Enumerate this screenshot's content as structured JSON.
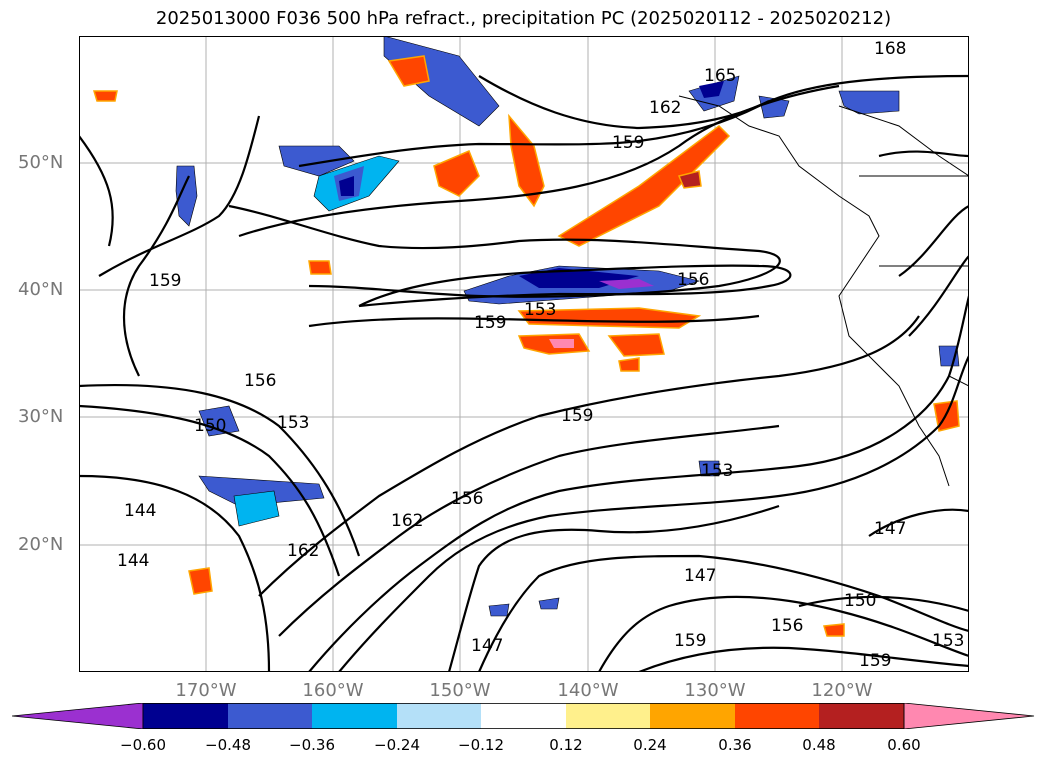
{
  "title": "2025013000 F036 500 hPa refract., precipitation PC (2025020112 - 2025020212)",
  "map": {
    "lat_labels": [
      "50°N",
      "40°N",
      "30°N",
      "20°N"
    ],
    "lon_labels": [
      "170°W",
      "160°W",
      "150°W",
      "140°W",
      "130°W",
      "120°W"
    ],
    "contour_labels": [
      "168",
      "165",
      "162",
      "159",
      "159",
      "156",
      "153",
      "159",
      "156",
      "153",
      "150",
      "144",
      "144",
      "162",
      "159",
      "156",
      "162",
      "153",
      "147",
      "147",
      "159",
      "156",
      "150",
      "147",
      "153",
      "159"
    ]
  },
  "colorbar": {
    "ticks": [
      "−0.60",
      "−0.48",
      "−0.36",
      "−0.24",
      "−0.12",
      "0.12",
      "0.24",
      "0.36",
      "0.48",
      "0.60"
    ],
    "colors": [
      "#9b30d0",
      "#000090",
      "#3c5ad0",
      "#00b4f0",
      "#b4e0f8",
      "#ffffff",
      "#fff08c",
      "#ffa500",
      "#ff4500",
      "#b42020",
      "#ff88b0"
    ]
  }
}
